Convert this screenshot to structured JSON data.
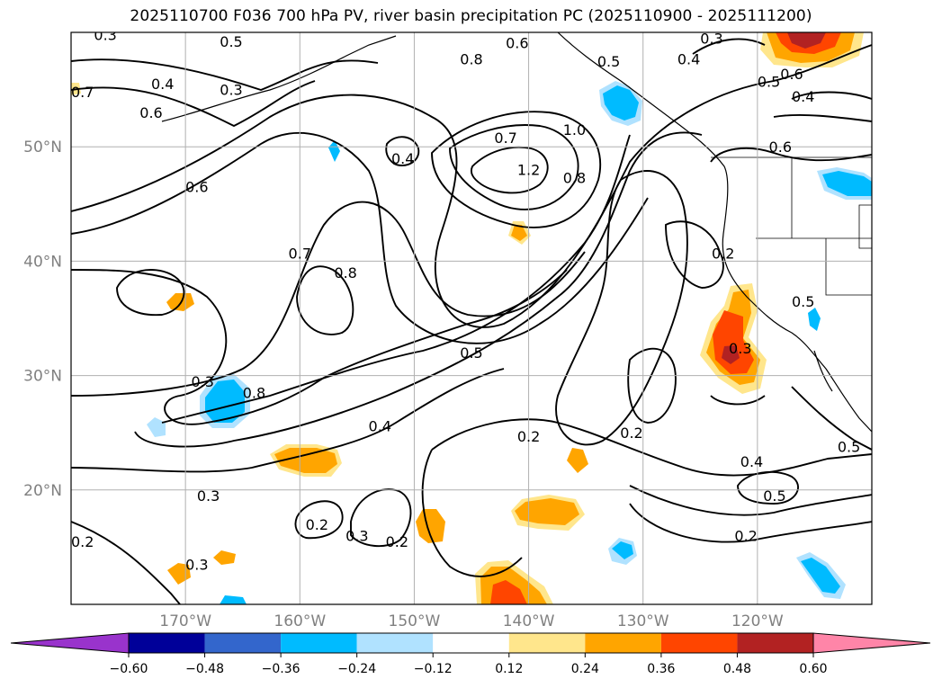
{
  "title": "2025110700 F036 700 hPa PV, river basin precipitation PC (2025110900 - 2025111200)",
  "map": {
    "lat_labels": [
      "50°N",
      "40°N",
      "30°N",
      "20°N"
    ],
    "lon_labels": [
      "170°W",
      "160°W",
      "150°W",
      "140°W",
      "130°W",
      "120°W"
    ],
    "grid_lat": [
      50,
      40,
      30,
      20
    ],
    "grid_lon": [
      -170,
      -160,
      -150,
      -140,
      -130,
      -120
    ]
  },
  "colorbar": {
    "ticks": [
      "−0.60",
      "−0.48",
      "−0.36",
      "−0.24",
      "−0.12",
      "0.12",
      "0.24",
      "0.36",
      "0.48",
      "0.60"
    ],
    "colors": [
      "#9933cc",
      "#000099",
      "#3366cc",
      "#00bbff",
      "#b0e2ff",
      "#ffffff",
      "#ffe68c",
      "#ffa500",
      "#ff4500",
      "#b22222",
      "#ff85a8"
    ]
  },
  "chart_data": {
    "type": "heatmap",
    "title": "2025110700 F036 700 hPa PV, river basin precipitation PC (2025110900 - 2025111200)",
    "variables": [
      "700 hPa PV (contours)",
      "river basin precipitation PC (shaded)"
    ],
    "lat_range": [
      10,
      60
    ],
    "lon_range": [
      -180,
      -110
    ],
    "colorbar_levels": [
      -0.6,
      -0.48,
      -0.36,
      -0.24,
      -0.12,
      0.12,
      0.24,
      0.36,
      0.48,
      0.6
    ],
    "colorbar_extend": "both",
    "contour_labels": [
      {
        "text": "0.3",
        "lat": 59.8,
        "lon": -177
      },
      {
        "text": "0.5",
        "lat": 59.2,
        "lon": -166
      },
      {
        "text": "0.6",
        "lat": 59.1,
        "lon": -141
      },
      {
        "text": "0.3",
        "lat": 59.5,
        "lon": -124
      },
      {
        "text": "0.4",
        "lat": 57.7,
        "lon": -126
      },
      {
        "text": "0.8",
        "lat": 57.7,
        "lon": -145
      },
      {
        "text": "0.5",
        "lat": 57.5,
        "lon": -133
      },
      {
        "text": "0.6",
        "lat": 56.4,
        "lon": -117
      },
      {
        "text": "0.5",
        "lat": 55.7,
        "lon": -119
      },
      {
        "text": "0.4",
        "lat": 54.4,
        "lon": -116
      },
      {
        "text": "0.4",
        "lat": 55.5,
        "lon": -172
      },
      {
        "text": "0.6",
        "lat": 53,
        "lon": -173
      },
      {
        "text": "0.3",
        "lat": 55,
        "lon": -166
      },
      {
        "text": "0.7",
        "lat": 54.8,
        "lon": -179
      },
      {
        "text": "0.7",
        "lat": 50.8,
        "lon": -142
      },
      {
        "text": "1.0",
        "lat": 51.5,
        "lon": -136
      },
      {
        "text": "0.6",
        "lat": 50,
        "lon": -118
      },
      {
        "text": "0.4",
        "lat": 49,
        "lon": -151
      },
      {
        "text": "1.2",
        "lat": 48,
        "lon": -140
      },
      {
        "text": "0.8",
        "lat": 47.3,
        "lon": -136
      },
      {
        "text": "0.6",
        "lat": 46.5,
        "lon": -169
      },
      {
        "text": "0.7",
        "lat": 40.7,
        "lon": -160
      },
      {
        "text": "0.8",
        "lat": 39,
        "lon": -156
      },
      {
        "text": "0.2",
        "lat": 40.7,
        "lon": -123
      },
      {
        "text": "0.5",
        "lat": 36.5,
        "lon": -116
      },
      {
        "text": "0.3",
        "lat": 32.4,
        "lon": -121.5
      },
      {
        "text": "0.5",
        "lat": 32,
        "lon": -145
      },
      {
        "text": "0.3",
        "lat": 29.5,
        "lon": -168.5
      },
      {
        "text": "0.8",
        "lat": 28.5,
        "lon": -164
      },
      {
        "text": "0.4",
        "lat": 25.6,
        "lon": -153
      },
      {
        "text": "0.2",
        "lat": 25,
        "lon": -131
      },
      {
        "text": "0.2",
        "lat": 24.7,
        "lon": -140
      },
      {
        "text": "0.4",
        "lat": 22.5,
        "lon": -120.5
      },
      {
        "text": "0.5",
        "lat": 23.8,
        "lon": -112
      },
      {
        "text": "0.3",
        "lat": 19.5,
        "lon": -168
      },
      {
        "text": "0.5",
        "lat": 19.5,
        "lon": -118.5
      },
      {
        "text": "0.2",
        "lat": 17,
        "lon": -158.5
      },
      {
        "text": "0.3",
        "lat": 16,
        "lon": -155
      },
      {
        "text": "0.2",
        "lat": 15.5,
        "lon": -151.5
      },
      {
        "text": "0.2",
        "lat": 16,
        "lon": -121
      },
      {
        "text": "0.2",
        "lat": 15.5,
        "lon": -179
      },
      {
        "text": "0.3",
        "lat": 13.5,
        "lon": -169
      }
    ],
    "shaded_regions": [
      {
        "value": 0.5,
        "lat": 59,
        "lon": -117,
        "note": "positive (orange-red) NE corner"
      },
      {
        "value": 0.42,
        "lat": 32,
        "lon": -122,
        "note": "positive off southern California"
      },
      {
        "value": 0.3,
        "lat": 13,
        "lon": -142,
        "note": "positive south center"
      },
      {
        "value": 0.3,
        "lat": 18,
        "lon": -140,
        "note": "positive"
      },
      {
        "value": 0.3,
        "lat": 22.5,
        "lon": -158,
        "note": "positive"
      },
      {
        "value": 0.25,
        "lat": 42.5,
        "lon": -143.5,
        "note": "positive small"
      },
      {
        "value": 0.25,
        "lat": 36.5,
        "lon": -170.5,
        "note": "positive small"
      },
      {
        "value": 0.25,
        "lat": 17,
        "lon": -148.5,
        "note": "positive small"
      },
      {
        "value": 0.25,
        "lat": 22.5,
        "lon": -136.5,
        "note": "positive small"
      },
      {
        "value": -0.35,
        "lat": 28,
        "lon": -166,
        "note": "negative (blue)"
      },
      {
        "value": -0.3,
        "lat": 54.5,
        "lon": -132,
        "note": "negative near Alaska panhandle"
      },
      {
        "value": -0.3,
        "lat": 47.5,
        "lon": -112.5,
        "note": "negative inland"
      },
      {
        "value": -0.3,
        "lat": 12.8,
        "lon": -114,
        "note": "negative SE"
      },
      {
        "value": -0.2,
        "lat": 14.5,
        "lon": -132.5,
        "note": "negative small"
      }
    ]
  }
}
